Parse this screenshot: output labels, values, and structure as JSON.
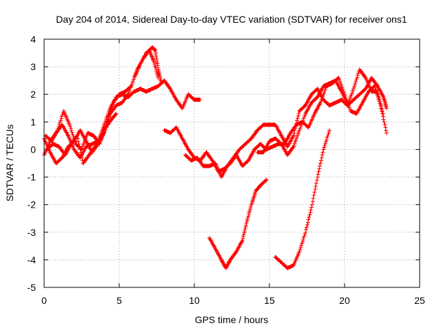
{
  "chart_data": {
    "type": "scatter",
    "title": "Day 204 of 2014, Sidereal Day-to-day VTEC variation (SDTVAR) for receiver ons1",
    "xlabel": "GPS time / hours",
    "ylabel": "SDTVAR / TECUs",
    "xlim": [
      0,
      25
    ],
    "ylim": [
      -5,
      4
    ],
    "xticks": [
      0,
      5,
      10,
      15,
      20,
      25
    ],
    "yticks": [
      -5,
      -4,
      -3,
      -2,
      -1,
      0,
      1,
      2,
      3,
      4
    ],
    "grid": true,
    "marker": "+",
    "color": "#ff0000",
    "legend": "none",
    "series": [
      {
        "points": [
          [
            0,
            -0.2
          ],
          [
            0.4,
            0.3
          ],
          [
            0.8,
            0.6
          ],
          [
            1.2,
            0.9
          ],
          [
            1.6,
            0.5
          ],
          [
            2.0,
            0.0
          ],
          [
            2.4,
            -0.3
          ],
          [
            2.8,
            0.1
          ],
          [
            3.2,
            0.2
          ],
          [
            3.6,
            0.3
          ],
          [
            4.0,
            0.9
          ],
          [
            4.4,
            1.5
          ],
          [
            4.8,
            1.9
          ],
          [
            5.2,
            2.0
          ],
          [
            5.6,
            1.9
          ],
          [
            6.0,
            2.1
          ],
          [
            6.4,
            2.2
          ],
          [
            6.8,
            2.1
          ],
          [
            7.2,
            2.2
          ],
          [
            7.6,
            2.3
          ],
          [
            8.0,
            2.5
          ],
          [
            8.4,
            2.2
          ],
          [
            8.8,
            1.8
          ],
          [
            9.2,
            1.5
          ],
          [
            9.6,
            2.0
          ],
          [
            10.0,
            1.8
          ],
          [
            10.4,
            1.8
          ]
        ]
      },
      {
        "points": [
          [
            0,
            0.4
          ],
          [
            0.4,
            -0.1
          ],
          [
            0.8,
            -0.5
          ],
          [
            1.2,
            -0.3
          ],
          [
            1.6,
            0.1
          ],
          [
            2.0,
            0.3
          ],
          [
            2.4,
            0.7
          ],
          [
            2.8,
            0.3
          ],
          [
            3.2,
            -0.1
          ],
          [
            3.6,
            0.2
          ],
          [
            4.0,
            0.6
          ],
          [
            4.4,
            1.3
          ],
          [
            4.8,
            1.6
          ],
          [
            5.2,
            1.7
          ],
          [
            5.6,
            2.0
          ],
          [
            6.0,
            2.6
          ],
          [
            6.4,
            3.1
          ],
          [
            6.8,
            3.5
          ],
          [
            7.2,
            3.7
          ],
          [
            7.4,
            3.6
          ],
          [
            7.6,
            2.9
          ],
          [
            7.8,
            2.4
          ]
        ]
      },
      {
        "points": [
          [
            0.2,
            0.0
          ],
          [
            0.6,
            0.2
          ],
          [
            1.0,
            0.1
          ],
          [
            1.4,
            -0.2
          ],
          [
            1.8,
            0.2
          ],
          [
            2.2,
            0.5
          ],
          [
            2.6,
            -0.5
          ],
          [
            3.0,
            -0.2
          ],
          [
            3.4,
            0.1
          ],
          [
            3.8,
            0.4
          ],
          [
            4.2,
            1.0
          ],
          [
            4.6,
            1.7
          ],
          [
            5.0,
            2.0
          ],
          [
            5.4,
            2.1
          ],
          [
            5.8,
            2.3
          ],
          [
            6.2,
            2.9
          ],
          [
            6.6,
            3.3
          ],
          [
            7.0,
            3.6
          ],
          [
            7.3,
            3.2
          ],
          [
            7.6,
            2.6
          ]
        ]
      },
      {
        "points": [
          [
            0.1,
            0.5
          ],
          [
            0.5,
            0.3
          ],
          [
            0.9,
            0.7
          ],
          [
            1.3,
            1.4
          ],
          [
            1.7,
            0.9
          ],
          [
            2.1,
            0.2
          ],
          [
            2.5,
            0.0
          ],
          [
            2.9,
            0.6
          ],
          [
            3.3,
            0.5
          ],
          [
            3.7,
            0.2
          ],
          [
            4.1,
            0.8
          ],
          [
            4.5,
            1.1
          ],
          [
            4.8,
            1.3
          ]
        ]
      },
      {
        "points": [
          [
            8.0,
            0.7
          ],
          [
            8.4,
            0.6
          ],
          [
            8.8,
            0.8
          ],
          [
            9.2,
            0.4
          ],
          [
            9.6,
            0.0
          ],
          [
            10.0,
            -0.3
          ],
          [
            10.4,
            -0.4
          ],
          [
            10.8,
            -0.1
          ],
          [
            11.2,
            -0.4
          ],
          [
            11.6,
            -0.8
          ],
          [
            12.0,
            -0.7
          ],
          [
            12.4,
            -0.5
          ],
          [
            12.8,
            -0.2
          ],
          [
            13.2,
            -0.6
          ],
          [
            13.6,
            -0.4
          ],
          [
            14.0,
            0.0
          ],
          [
            14.4,
            0.2
          ],
          [
            14.8,
            0.0
          ],
          [
            15.2,
            0.1
          ],
          [
            15.6,
            0.2
          ],
          [
            16.0,
            0.2
          ],
          [
            16.4,
            0.6
          ],
          [
            16.8,
            0.9
          ],
          [
            17.2,
            1.0
          ],
          [
            17.6,
            0.8
          ],
          [
            18.0,
            1.3
          ],
          [
            18.4,
            1.7
          ],
          [
            18.8,
            2.3
          ],
          [
            19.2,
            2.4
          ],
          [
            19.6,
            2.6
          ],
          [
            20.0,
            2.0
          ],
          [
            20.4,
            1.4
          ],
          [
            20.8,
            1.3
          ],
          [
            21.2,
            1.7
          ],
          [
            21.6,
            2.1
          ],
          [
            22.0,
            2.3
          ],
          [
            22.4,
            1.6
          ],
          [
            22.8,
            0.6
          ]
        ]
      },
      {
        "points": [
          [
            9.4,
            -0.2
          ],
          [
            9.8,
            -0.4
          ],
          [
            10.2,
            -0.3
          ],
          [
            10.6,
            -0.6
          ],
          [
            11.0,
            -0.6
          ],
          [
            11.4,
            -0.5
          ],
          [
            11.8,
            -1.0
          ],
          [
            12.2,
            -0.6
          ],
          [
            12.6,
            -0.3
          ],
          [
            13.0,
            0.0
          ],
          [
            13.4,
            0.2
          ],
          [
            13.8,
            0.4
          ],
          [
            14.2,
            0.7
          ],
          [
            14.6,
            0.9
          ],
          [
            15.0,
            0.9
          ],
          [
            15.4,
            0.9
          ],
          [
            15.8,
            0.5
          ],
          [
            16.2,
            0.1
          ],
          [
            16.6,
            0.5
          ],
          [
            17.0,
            1.4
          ],
          [
            17.4,
            1.6
          ],
          [
            17.8,
            2.0
          ],
          [
            18.2,
            2.2
          ],
          [
            18.6,
            1.8
          ],
          [
            19.0,
            1.6
          ],
          [
            19.4,
            1.7
          ],
          [
            19.8,
            1.8
          ],
          [
            20.2,
            1.6
          ],
          [
            20.6,
            1.8
          ],
          [
            21.0,
            2.0
          ],
          [
            21.4,
            2.2
          ],
          [
            21.8,
            2.6
          ],
          [
            22.2,
            2.3
          ],
          [
            22.6,
            1.9
          ],
          [
            22.8,
            1.5
          ]
        ]
      },
      {
        "points": [
          [
            14.2,
            -0.1
          ],
          [
            14.6,
            -0.1
          ],
          [
            15.0,
            0.3
          ],
          [
            15.4,
            0.4
          ],
          [
            15.8,
            0.2
          ],
          [
            16.2,
            -0.2
          ],
          [
            16.6,
            0.1
          ],
          [
            17.0,
            0.7
          ],
          [
            17.4,
            1.3
          ],
          [
            17.8,
            1.7
          ],
          [
            18.2,
            1.9
          ],
          [
            18.6,
            2.3
          ],
          [
            19.0,
            2.4
          ],
          [
            19.4,
            2.5
          ],
          [
            19.8,
            2.1
          ],
          [
            20.2,
            1.6
          ],
          [
            20.6,
            2.2
          ],
          [
            21.0,
            2.9
          ],
          [
            21.4,
            2.6
          ],
          [
            21.8,
            2.1
          ],
          [
            22.2,
            2.1
          ],
          [
            22.6,
            1.2
          ]
        ]
      },
      {
        "points": [
          [
            11.0,
            -3.2
          ],
          [
            11.4,
            -3.6
          ],
          [
            11.8,
            -4.0
          ],
          [
            12.1,
            -4.3
          ],
          [
            12.4,
            -4.0
          ],
          [
            12.8,
            -3.7
          ],
          [
            13.2,
            -3.3
          ],
          [
            13.5,
            -2.6
          ],
          [
            13.8,
            -2.0
          ],
          [
            14.1,
            -1.5
          ],
          [
            14.4,
            -1.3
          ],
          [
            14.8,
            -1.1
          ]
        ]
      },
      {
        "points": [
          [
            15.4,
            -3.9
          ],
          [
            15.8,
            -4.1
          ],
          [
            16.2,
            -4.3
          ],
          [
            16.6,
            -4.2
          ],
          [
            17.0,
            -3.7
          ],
          [
            17.4,
            -3.0
          ],
          [
            17.8,
            -2.1
          ],
          [
            18.2,
            -1.0
          ],
          [
            18.6,
            0.0
          ],
          [
            19.0,
            0.7
          ]
        ]
      }
    ]
  }
}
